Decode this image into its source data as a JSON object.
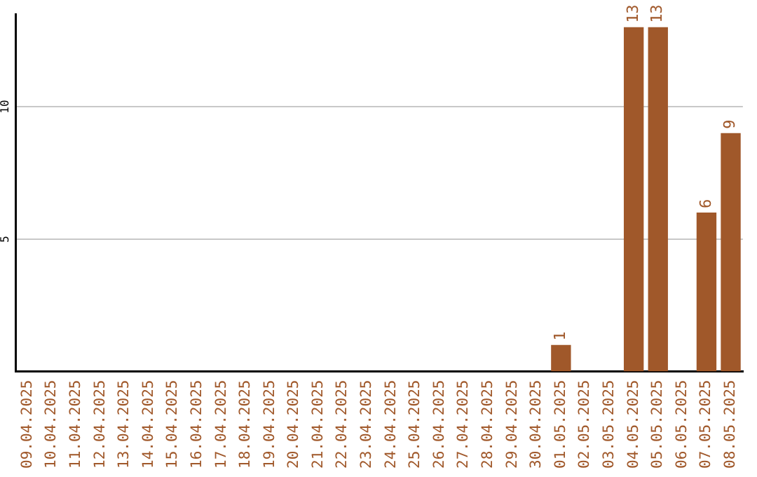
{
  "chart_data": {
    "type": "bar",
    "categories": [
      "09.04.2025",
      "10.04.2025",
      "11.04.2025",
      "12.04.2025",
      "13.04.2025",
      "14.04.2025",
      "15.04.2025",
      "16.04.2025",
      "17.04.2025",
      "18.04.2025",
      "19.04.2025",
      "20.04.2025",
      "21.04.2025",
      "22.04.2025",
      "23.04.2025",
      "24.04.2025",
      "25.04.2025",
      "26.04.2025",
      "27.04.2025",
      "28.04.2025",
      "29.04.2025",
      "30.04.2025",
      "01.05.2025",
      "02.05.2025",
      "03.05.2025",
      "04.05.2025",
      "05.05.2025",
      "06.05.2025",
      "07.05.2025",
      "08.05.2025"
    ],
    "values": [
      0,
      0,
      0,
      0,
      0,
      0,
      0,
      0,
      0,
      0,
      0,
      0,
      0,
      0,
      0,
      0,
      0,
      0,
      0,
      0,
      0,
      0,
      1,
      0,
      0,
      13,
      13,
      0,
      6,
      9
    ],
    "value_labels": [
      null,
      null,
      null,
      null,
      null,
      null,
      null,
      null,
      null,
      null,
      null,
      null,
      null,
      null,
      null,
      null,
      null,
      null,
      null,
      null,
      null,
      null,
      "1",
      null,
      null,
      "13",
      "13",
      null,
      "6",
      "9"
    ],
    "color": "#a0582a",
    "ylim": [
      0,
      13.5
    ],
    "yticks": [
      5,
      10
    ],
    "grid": "y",
    "legend": false
  }
}
